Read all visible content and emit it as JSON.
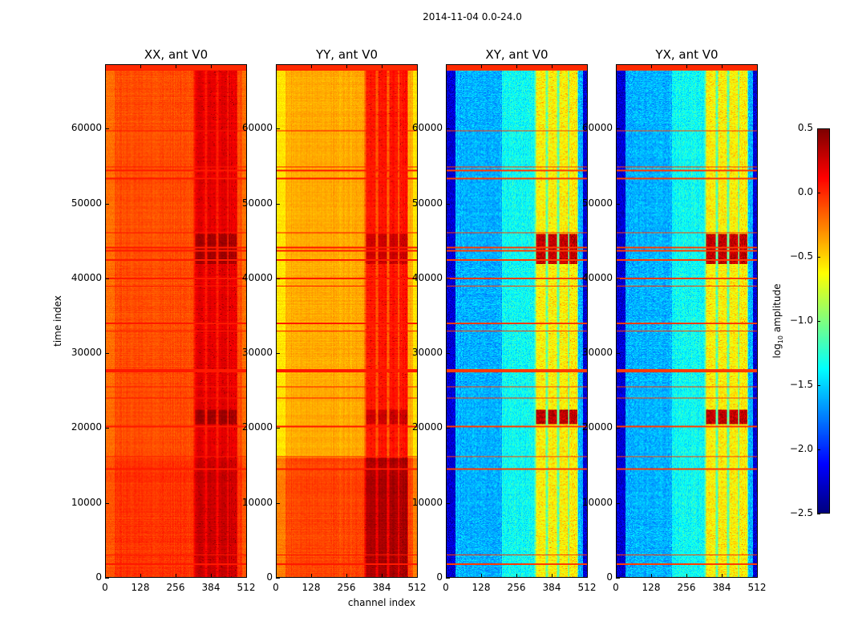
{
  "chart_data": {
    "type": "heatmap",
    "title": "2014-11-04 0.0-24.0",
    "xlabel": "channel index",
    "ylabel": "time index",
    "xlim": [
      0,
      512
    ],
    "ylim": [
      0,
      68600
    ],
    "xticks": [
      "0",
      "128",
      "256",
      "384",
      "512"
    ],
    "xtick_values": [
      0,
      128,
      256,
      384,
      512
    ],
    "yticks": [
      "0",
      "10000",
      "20000",
      "30000",
      "40000",
      "50000",
      "60000"
    ],
    "ytick_values": [
      0,
      10000,
      20000,
      30000,
      40000,
      50000,
      60000
    ],
    "colorbar": {
      "label_prefix": "log",
      "label_sub": "10",
      "label_suffix": " amplitude",
      "colormap": "jet",
      "range": [
        -2.5,
        0.5
      ],
      "ticks": [
        "0.5",
        "0.0",
        "−0.5",
        "−1.0",
        "−1.5",
        "−2.0",
        "−2.5"
      ],
      "tick_values": [
        0.5,
        0.0,
        -0.5,
        -1.0,
        -1.5,
        -2.0,
        -2.5
      ]
    },
    "panels": [
      {
        "title": "XX, ant V0",
        "base": -0.1,
        "edge": -0.2,
        "band_boost": 0.3,
        "low_time_boost": 0.08
      },
      {
        "title": "YY, ant V0",
        "base": -0.38,
        "edge": -0.55,
        "band_boost": 0.45,
        "low_time_boost": 0.3
      },
      {
        "title": "XY, ant V0",
        "base": -1.6,
        "edge": -2.25,
        "band_boost": 1.0,
        "low_time_boost": 0.0
      },
      {
        "title": "YX, ant V0",
        "base": -1.6,
        "edge": -2.25,
        "band_boost": 1.0,
        "low_time_boost": 0.0
      }
    ],
    "rfi_times": [
      1800,
      3000,
      14500,
      16200,
      20200,
      24000,
      25500,
      27600,
      27800,
      33000,
      34000,
      39000,
      40000,
      42500,
      43800,
      44200,
      46200,
      53400,
      54500,
      55000,
      59800,
      68000
    ]
  }
}
